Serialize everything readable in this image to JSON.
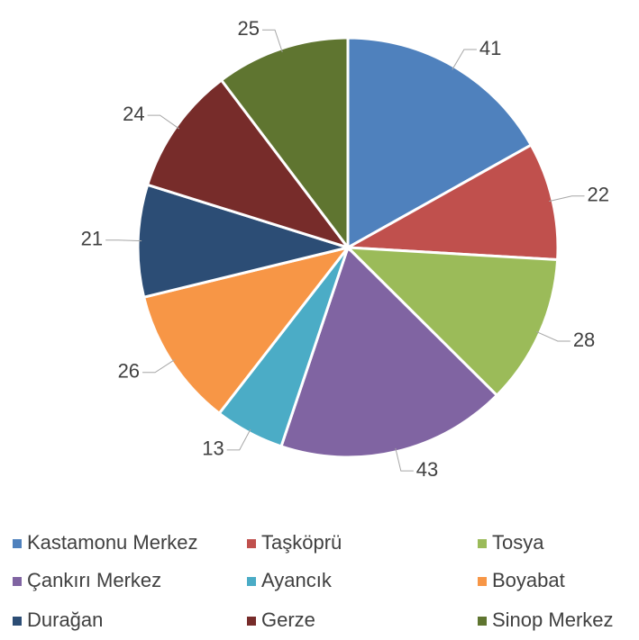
{
  "chart_data": {
    "type": "pie",
    "categories": [
      "Kastamonu Merkez",
      "Taşköprü",
      "Tosya",
      "Çankırı Merkez",
      "Ayancık",
      "Boyabat",
      "Durağan",
      "Gerze",
      "Sinop Merkez"
    ],
    "values": [
      41,
      22,
      28,
      43,
      13,
      26,
      21,
      24,
      25
    ],
    "colors": [
      "#4f81bd",
      "#c0504d",
      "#9bbb59",
      "#8064a2",
      "#4bacc6",
      "#f79646",
      "#2c4d75",
      "#772c2a",
      "#5f7530"
    ],
    "legend": "bottom"
  }
}
